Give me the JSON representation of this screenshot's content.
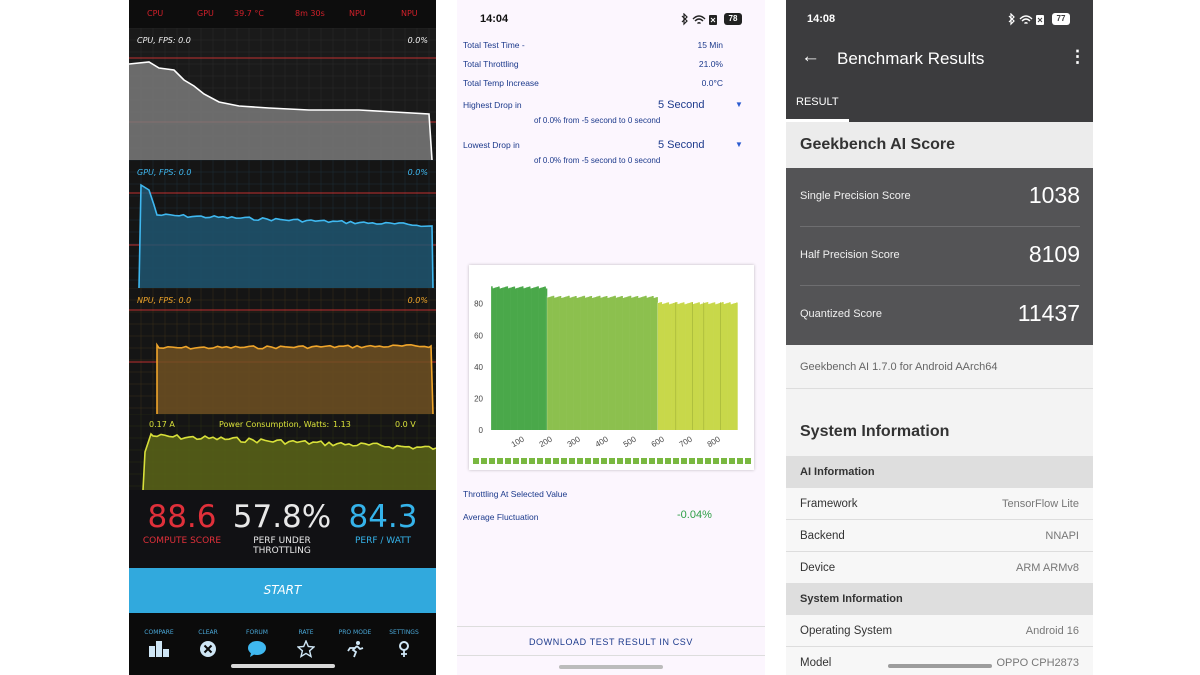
{
  "panel1": {
    "topbar": [
      "CPU",
      "GPU",
      "39.7 °C",
      "8m 30s",
      "NPU",
      "NPU"
    ],
    "graphs": {
      "cpu": {
        "label": "CPU, FPS: 0.0",
        "percent": "0.0%",
        "line_color": "#ffffff",
        "fill_color": "#7a7a7a"
      },
      "gpu": {
        "label": "GPU, FPS: 0.0",
        "percent": "0.0%",
        "line_color": "#3fb8f0",
        "fill_color": "#1f5570"
      },
      "npu": {
        "label": "NPU, FPS: 0.0",
        "percent": "0.0%",
        "line_color": "#f0a52a",
        "fill_color": "#6e5022"
      }
    },
    "power": {
      "current": "0.17 A",
      "label": "Power Consumption, Watts:",
      "watts": "1.13",
      "volts": "0.0 V",
      "line_color": "#d8e03a",
      "fill_color": "#5a6418"
    },
    "scores": {
      "compute": {
        "value": "88.6",
        "label": "COMPUTE SCORE",
        "color": "#e0303a"
      },
      "throttling": {
        "value": "57.8%",
        "label_line1": "PERF UNDER",
        "label_line2": "THROTTLING",
        "color": "#e8e8e8"
      },
      "perf_watt": {
        "value": "84.3",
        "label": "PERF / WATT",
        "color": "#35b3ea"
      }
    },
    "start_label": "START",
    "nav": [
      {
        "label": "COMPARE",
        "icon": "compare-icon"
      },
      {
        "label": "CLEAR",
        "icon": "clear-icon"
      },
      {
        "label": "FORUM",
        "icon": "forum-icon"
      },
      {
        "label": "RATE",
        "icon": "star-icon"
      },
      {
        "label": "PRO MODE",
        "icon": "runner-icon"
      },
      {
        "label": "SETTINGS",
        "icon": "settings-icon"
      }
    ]
  },
  "panel2": {
    "time": "14:04",
    "battery": "78",
    "stats": [
      {
        "label": "Total Test Time -",
        "value": "15 Min"
      },
      {
        "label": "Total Throttling",
        "value": "21.0%"
      },
      {
        "label": "Total Temp Increase",
        "value": "0.0°C"
      }
    ],
    "highest_drop": {
      "label": "Highest Drop in",
      "selected": "5 Second",
      "detail": "of 0.0% from -5 second to  0 second"
    },
    "lowest_drop": {
      "label": "Lowest Drop in",
      "selected": "5 Second",
      "detail": "of 0.0% from -5 second to  0 second"
    },
    "throttling_label": "Throttling At Selected Value",
    "avg_label": "Average Fluctuation",
    "avg_value": "-0.04%",
    "download_label": "DOWNLOAD TEST RESULT IN CSV",
    "chart_data": {
      "type": "bar",
      "title": "",
      "xlabel": "",
      "ylabel": "",
      "y_ticks": [
        "0",
        "20",
        "40",
        "60",
        "80"
      ],
      "x_ticks": [
        "100",
        "200",
        "300",
        "400",
        "500",
        "600",
        "700",
        "800"
      ],
      "ylim": [
        0,
        95
      ],
      "xlim": [
        0,
        900
      ],
      "segments": [
        {
          "x_start": 0,
          "x_end": 200,
          "value": 91,
          "color": "#4aa84a"
        },
        {
          "x_start": 200,
          "x_end": 595,
          "value": 85,
          "color": "#8cc04e"
        },
        {
          "x_start": 595,
          "x_end": 880,
          "value": 81,
          "color": "#c8d84a"
        }
      ],
      "legend_color": "#79b840"
    }
  },
  "panel3": {
    "time": "14:08",
    "battery": "77",
    "title": "Benchmark Results",
    "tab": "RESULT",
    "score_title": "Geekbench AI Score",
    "scores": [
      {
        "label": "Single Precision Score",
        "value": "1038"
      },
      {
        "label": "Half Precision Score",
        "value": "8109"
      },
      {
        "label": "Quantized Score",
        "value": "11437"
      }
    ],
    "version": "Geekbench AI 1.7.0 for Android AArch64",
    "system_info_title": "System Information",
    "ai_section": "AI Information",
    "ai_rows": [
      {
        "key": "Framework",
        "value": "TensorFlow Lite"
      },
      {
        "key": "Backend",
        "value": "NNAPI"
      },
      {
        "key": "Device",
        "value": "ARM ARMv8"
      }
    ],
    "sys_section": "System Information",
    "sys_rows": [
      {
        "key": "Operating System",
        "value": "Android 16"
      },
      {
        "key": "Model",
        "value": "OPPO CPH2873"
      }
    ]
  }
}
